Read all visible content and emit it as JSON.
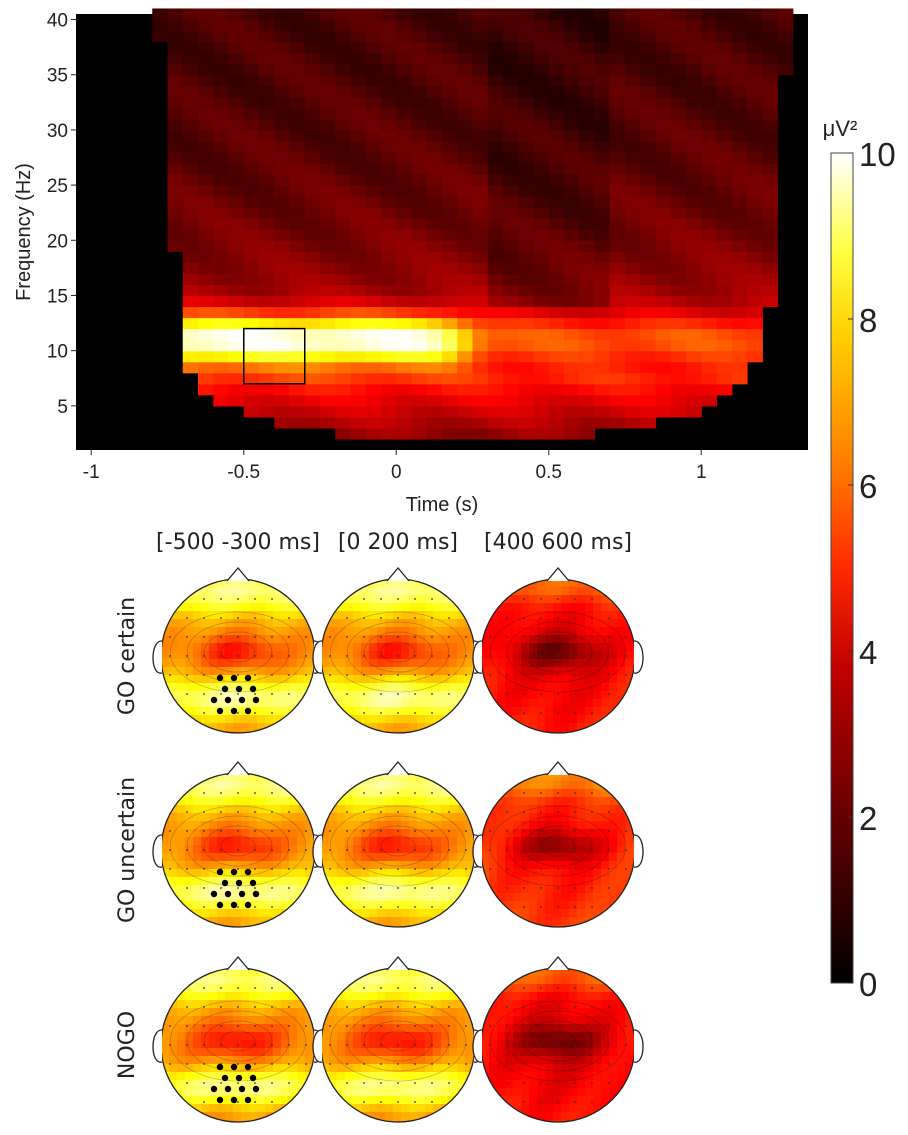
{
  "chart_data": [
    {
      "type": "heatmap",
      "title": "",
      "xlabel": "Time (s)",
      "ylabel": "Frequency (Hz)",
      "xlim": [
        -1.05,
        1.35
      ],
      "ylim": [
        1,
        40.5
      ],
      "x_ticks": [
        -1,
        -0.5,
        0,
        0.5,
        1
      ],
      "x_tick_labels": [
        "-1",
        "-0.5",
        "0",
        "0.5",
        "1"
      ],
      "y_ticks": [
        5,
        10,
        15,
        20,
        25,
        30,
        35,
        40
      ],
      "y_tick_labels": [
        "5",
        "10",
        "15",
        "20",
        "25",
        "30",
        "35",
        "40"
      ],
      "x_step": 0.05,
      "y_step": 1,
      "x_range": [
        -1.05,
        1.35
      ],
      "y_range": [
        1,
        40.5
      ],
      "power_model": {
        "base_low_freq_uV2": 4,
        "base_high_freq_uV2": 1,
        "alpha_band_hz": [
          8,
          15
        ],
        "alpha_peak_pre_uV2": 10,
        "alpha_peak_post_uV2": 5,
        "alpha_drop_time_s": 0.22
      },
      "cone_of_influence": [
        {
          "freq": 2,
          "t_min": -0.08,
          "t_max": 0.55
        },
        {
          "freq": 3,
          "t_min": -0.3,
          "t_max": 0.75
        },
        {
          "freq": 4,
          "t_min": -0.45,
          "t_max": 0.95
        },
        {
          "freq": 5,
          "t_min": -0.55,
          "t_max": 1.05
        },
        {
          "freq": 7,
          "t_min": -0.65,
          "t_max": 1.12
        },
        {
          "freq": 9,
          "t_min": -0.7,
          "t_max": 1.17
        },
        {
          "freq": 13,
          "t_min": -0.72,
          "t_max": 1.22
        },
        {
          "freq": 16,
          "t_min": -0.72,
          "t_max": 1.25
        },
        {
          "freq": 22,
          "t_min": -0.73,
          "t_max": 1.26
        },
        {
          "freq": 29,
          "t_min": -0.76,
          "t_max": 1.27
        },
        {
          "freq": 41,
          "t_min": -0.78,
          "t_max": 1.28
        }
      ],
      "roi": {
        "t": [
          -0.5,
          -0.3
        ],
        "f": [
          7,
          12
        ]
      }
    },
    {
      "type": "heatmap",
      "subtype": "topographic-maps",
      "column_headers": [
        "[-500 -300 ms]",
        "[0 200 ms]",
        "[400 600 ms]"
      ],
      "row_headers": [
        "GO certain",
        "GO uncertain",
        "NOGO"
      ],
      "maps": [
        [
          {
            "mean": 6,
            "posterior_high": true,
            "central_low": true
          },
          {
            "mean": 6,
            "posterior_high": true,
            "central_low": true
          },
          {
            "mean": 3.5,
            "posterior_high": false,
            "central_low": true
          }
        ],
        [
          {
            "mean": 6,
            "posterior_high": true,
            "central_low": true
          },
          {
            "mean": 6,
            "posterior_high": true,
            "central_low": true
          },
          {
            "mean": 4,
            "posterior_high": false,
            "central_low": true
          }
        ],
        [
          {
            "mean": 5.8,
            "posterior_high": true,
            "central_low": true
          },
          {
            "mean": 5.8,
            "posterior_high": true,
            "central_low": true
          },
          {
            "mean": 3.4,
            "posterior_high": false,
            "central_low": true
          }
        ]
      ],
      "roi_electrodes_column": 0
    },
    {
      "type": "colorbar",
      "unit": "μV²",
      "range": [
        0,
        10
      ],
      "ticks": [
        0,
        2,
        4,
        6,
        8,
        10
      ],
      "tick_labels": [
        "0",
        "2",
        "4",
        "6",
        "8",
        "10"
      ],
      "colormap": "hot",
      "colors": [
        "#000000",
        "#c00000",
        "#ff3300",
        "#ff9900",
        "#ffe000",
        "#ffffff"
      ]
    }
  ]
}
